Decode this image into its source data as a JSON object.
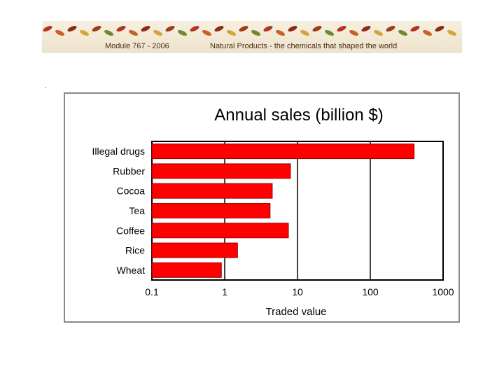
{
  "banner": {
    "module": "Module 767 - 2006",
    "course": "Natural Products - the chemicals that shaped the world"
  },
  "slide_marker": ".",
  "colors": {
    "bar": "#ff0000",
    "bar_stroke": "#990000",
    "grid": "#000000",
    "frame": "#8a8a8a"
  },
  "chart_data": {
    "type": "bar",
    "orientation": "horizontal",
    "title": "Annual sales (billion $)",
    "xlabel": "Traded value",
    "ylabel": "",
    "xscale": "log",
    "xlim": [
      0.1,
      1000
    ],
    "xticks": [
      "0.1",
      "1",
      "10",
      "100",
      "1000"
    ],
    "categories": [
      "Illegal drugs",
      "Rubber",
      "Cocoa",
      "Tea",
      "Coffee",
      "Rice",
      "Wheat"
    ],
    "values": [
      400,
      8,
      4.5,
      4.2,
      7.5,
      1.5,
      0.9
    ],
    "grid": true
  }
}
